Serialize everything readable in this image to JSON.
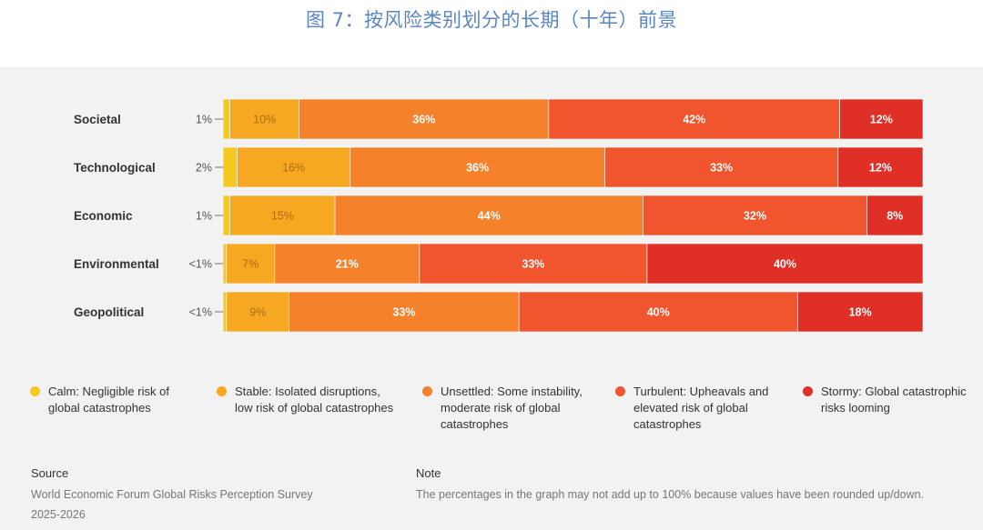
{
  "title": "图 7：按风险类别划分的长期（十年）前景",
  "colors": {
    "calm": "#f5c81f",
    "stable": "#f6a823",
    "unsettled": "#f5822b",
    "turbulent": "#f0552d",
    "stormy": "#df2f27"
  },
  "chart_data": {
    "type": "bar",
    "orientation": "horizontal",
    "stacked": true,
    "unit": "%",
    "categories": [
      "Societal",
      "Technological",
      "Economic",
      "Environmental",
      "Geopolitical"
    ],
    "series": [
      {
        "key": "calm",
        "name": "Calm",
        "values": [
          1,
          2,
          1,
          0.5,
          0.5
        ],
        "labels": [
          "1%",
          "2%",
          "1%",
          "<1%",
          "<1%"
        ]
      },
      {
        "key": "stable",
        "name": "Stable",
        "values": [
          10,
          16,
          15,
          7,
          9
        ],
        "labels": [
          "10%",
          "16%",
          "15%",
          "7%",
          "9%"
        ]
      },
      {
        "key": "unsettled",
        "name": "Unsettled",
        "values": [
          36,
          36,
          44,
          21,
          33
        ],
        "labels": [
          "36%",
          "36%",
          "44%",
          "21%",
          "33%"
        ]
      },
      {
        "key": "turbulent",
        "name": "Turbulent",
        "values": [
          42,
          33,
          32,
          33,
          40
        ],
        "labels": [
          "42%",
          "33%",
          "32%",
          "33%",
          "40%"
        ]
      },
      {
        "key": "stormy",
        "name": "Stormy",
        "values": [
          12,
          12,
          8,
          40,
          18
        ],
        "labels": [
          "12%",
          "12%",
          "8%",
          "40%",
          "18%"
        ]
      }
    ]
  },
  "legend": [
    {
      "key": "calm",
      "line1": "Calm: Negligible risk of",
      "line2": "global catastrophes",
      "line3": ""
    },
    {
      "key": "stable",
      "line1": "Stable: Isolated disruptions,",
      "line2": "low risk of global catastrophes",
      "line3": ""
    },
    {
      "key": "unsettled",
      "line1": "Unsettled: Some instability,",
      "line2": "moderate risk of global",
      "line3": "catastrophes"
    },
    {
      "key": "turbulent",
      "line1": "Turbulent: Upheavals and",
      "line2": "elevated risk of global",
      "line3": "catastrophes"
    },
    {
      "key": "stormy",
      "line1": "Stormy: Global catastrophic",
      "line2": "risks looming",
      "line3": ""
    }
  ],
  "footer": {
    "source_heading": "Source",
    "source_line1": "World Economic Forum Global Risks Perception Survey",
    "source_line2": "2025-2026",
    "note_heading": "Note",
    "note_text": "The percentages in the graph may not add up to 100% because values have been rounded up/down."
  }
}
